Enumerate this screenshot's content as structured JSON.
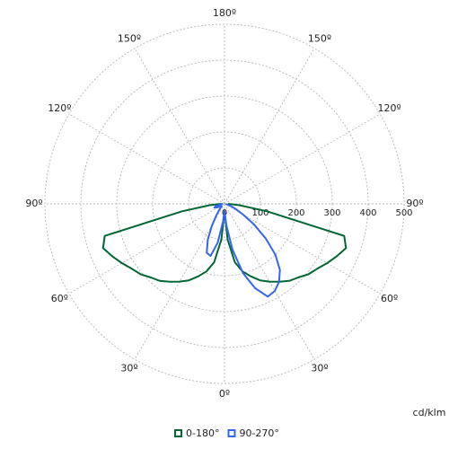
{
  "chart_data": {
    "type": "polar",
    "x": [
      -90,
      -85,
      -80,
      -75,
      -70,
      -65,
      -60,
      -55,
      -50,
      -45,
      -40,
      -35,
      -30,
      -25,
      -20,
      -15,
      -10,
      -5,
      0,
      5,
      10,
      15,
      20,
      25,
      30,
      35,
      40,
      45,
      50,
      55,
      60,
      65,
      70,
      75,
      80,
      85,
      90
    ],
    "series": [
      {
        "name": "0-180°",
        "color": "#006633",
        "values": [
          10,
          40,
          120,
          345,
          360,
          345,
          330,
          315,
          305,
          290,
          280,
          265,
          250,
          235,
          215,
          195,
          165,
          100,
          20,
          100,
          165,
          195,
          215,
          235,
          250,
          265,
          280,
          290,
          305,
          315,
          330,
          345,
          360,
          345,
          120,
          40,
          10
        ]
      },
      {
        "name": "90-270°",
        "color": "#3366ee",
        "values": [
          5,
          10,
          15,
          25,
          30,
          25,
          15,
          10,
          10,
          15,
          25,
          40,
          70,
          110,
          145,
          150,
          110,
          50,
          20,
          60,
          130,
          200,
          250,
          285,
          280,
          265,
          240,
          200,
          150,
          100,
          60,
          35,
          20,
          10,
          5,
          5,
          5
        ]
      }
    ],
    "rlim": [
      0,
      500
    ],
    "rticks": [
      0,
      100,
      200,
      300,
      400,
      500
    ],
    "angle_ticks": [
      {
        "value": 0,
        "label": "0º"
      },
      {
        "value": 30,
        "label": "30º"
      },
      {
        "value": -30,
        "label": "30º"
      },
      {
        "value": 60,
        "label": "60º"
      },
      {
        "value": -60,
        "label": "60º"
      },
      {
        "value": 90,
        "label": "90º"
      },
      {
        "value": -90,
        "label": "90º"
      },
      {
        "value": 120,
        "label": "120º"
      },
      {
        "value": -120,
        "label": "120º"
      },
      {
        "value": 150,
        "label": "150º"
      },
      {
        "value": -150,
        "label": "150º"
      },
      {
        "value": 180,
        "label": "180º"
      }
    ],
    "r_label": "cd/klm",
    "grid": true
  }
}
